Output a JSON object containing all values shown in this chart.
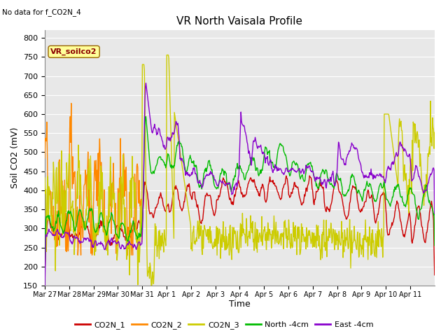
{
  "title": "VR North Vaisala Profile",
  "subtitle": "No data for f_CO2N_4",
  "xlabel": "Time",
  "ylabel": "Soil CO2 (mV)",
  "ylim": [
    150,
    820
  ],
  "yticks": [
    150,
    200,
    250,
    300,
    350,
    400,
    450,
    500,
    550,
    600,
    650,
    700,
    750,
    800
  ],
  "xtick_labels": [
    "Mar 27",
    "Mar 28",
    "Mar 29",
    "Mar 30",
    "Mar 31",
    "Apr 1",
    "Apr 2",
    "Apr 3",
    "Apr 4",
    "Apr 5",
    "Apr 6",
    "Apr 7",
    "Apr 8",
    "Apr 9",
    "Apr 10",
    "Apr 11"
  ],
  "box_label": "VR_soilco2",
  "series_colors": {
    "CO2N_1": "#cc0000",
    "CO2N_2": "#ff8800",
    "CO2N_3": "#cccc00",
    "North_4cm": "#00bb00",
    "East_4cm": "#8800cc"
  },
  "legend_labels": [
    "CO2N_1",
    "CO2N_2",
    "CO2N_3",
    "North -4cm",
    "East -4cm"
  ],
  "plot_bg_color": "#e8e8e8",
  "grid_color": "#ffffff"
}
